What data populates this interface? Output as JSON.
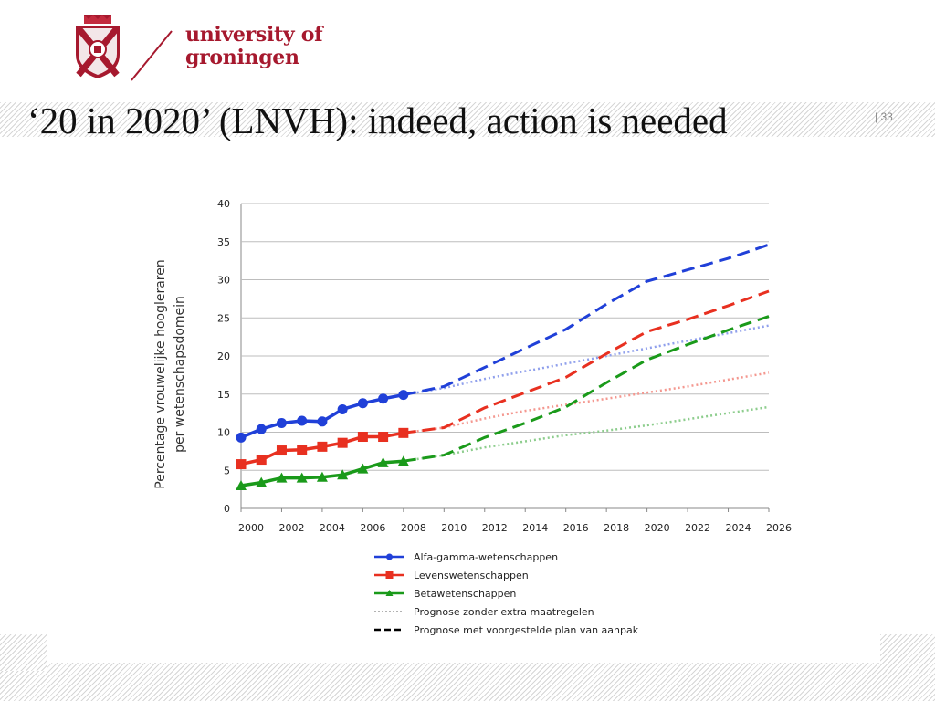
{
  "header": {
    "wordmark_line1": "university of",
    "wordmark_line2": "groningen",
    "slide_title": "‘20 in 2020’ (LNVH): indeed, action is needed",
    "slide_number": "| 33",
    "brand_color": "#a6192e"
  },
  "chart_data": {
    "type": "line",
    "ylabel_line1": "Percentage vrouwelijke hoogleraren",
    "ylabel_line2": "per wetenschapsdomein",
    "x_ticks": [
      "2000",
      "2002",
      "2004",
      "2006",
      "2008",
      "2010",
      "2012",
      "2014",
      "2016",
      "2018",
      "2020",
      "2022",
      "2024",
      "2026"
    ],
    "y_ticks": [
      "0",
      "5",
      "10",
      "15",
      "20",
      "25",
      "30",
      "35",
      "40"
    ],
    "xlim": [
      2000,
      2026
    ],
    "ylim": [
      0,
      40
    ],
    "grid": true,
    "series": [
      {
        "name": "Alfa-gamma-wetenschappen",
        "color": "#2040d8",
        "marker": "circle",
        "x": [
          2000,
          2001,
          2002,
          2003,
          2004,
          2005,
          2006,
          2007,
          2008
        ],
        "values": [
          9.3,
          10.4,
          11.2,
          11.5,
          11.4,
          13.0,
          13.8,
          14.4,
          14.9
        ],
        "forecast_extra": {
          "x": [
            2008,
            2010,
            2012,
            2014,
            2016,
            2018,
            2020,
            2022,
            2024,
            2026
          ],
          "values": [
            14.9,
            16.0,
            18.5,
            21.0,
            23.5,
            26.8,
            29.8,
            31.3,
            32.8,
            34.6
          ]
        },
        "forecast_plain": {
          "x": [
            2008,
            2010,
            2012,
            2014,
            2016,
            2018,
            2020,
            2022,
            2024,
            2026
          ],
          "values": [
            14.9,
            15.8,
            17.0,
            18.0,
            19.0,
            20.0,
            21.0,
            22.0,
            23.0,
            24.0
          ]
        }
      },
      {
        "name": "Levenswetenschappen",
        "color": "#e83020",
        "marker": "square",
        "x": [
          2000,
          2001,
          2002,
          2003,
          2004,
          2005,
          2006,
          2007,
          2008
        ],
        "values": [
          5.8,
          6.4,
          7.6,
          7.7,
          8.1,
          8.6,
          9.4,
          9.4,
          9.9
        ],
        "forecast_extra": {
          "x": [
            2008,
            2010,
            2012,
            2014,
            2016,
            2018,
            2020,
            2022,
            2024,
            2026
          ],
          "values": [
            9.9,
            10.6,
            13.2,
            15.2,
            17.2,
            20.3,
            23.2,
            24.8,
            26.6,
            28.5
          ]
        },
        "forecast_plain": {
          "x": [
            2008,
            2010,
            2012,
            2014,
            2016,
            2018,
            2020,
            2022,
            2024,
            2026
          ],
          "values": [
            9.9,
            10.6,
            11.8,
            12.8,
            13.6,
            14.4,
            15.2,
            16.0,
            16.9,
            17.8
          ]
        }
      },
      {
        "name": "Betawetenschappen",
        "color": "#1a9a1a",
        "marker": "triangle",
        "x": [
          2000,
          2001,
          2002,
          2003,
          2004,
          2005,
          2006,
          2007,
          2008
        ],
        "values": [
          3.0,
          3.4,
          4.0,
          4.0,
          4.1,
          4.4,
          5.2,
          6.0,
          6.2
        ],
        "forecast_extra": {
          "x": [
            2008,
            2010,
            2012,
            2014,
            2016,
            2018,
            2020,
            2022,
            2024,
            2026
          ],
          "values": [
            6.2,
            7.0,
            9.3,
            11.2,
            13.3,
            16.5,
            19.5,
            21.5,
            23.4,
            25.2
          ]
        },
        "forecast_plain": {
          "x": [
            2008,
            2010,
            2012,
            2014,
            2016,
            2018,
            2020,
            2022,
            2024,
            2026
          ],
          "values": [
            6.2,
            7.0,
            8.0,
            8.8,
            9.6,
            10.2,
            10.9,
            11.7,
            12.5,
            13.3
          ]
        }
      }
    ],
    "legend": {
      "position": "bottom-center",
      "entries": [
        {
          "label": "Alfa-gamma-wetenschappen",
          "style": "solid-marker",
          "color": "#2040d8"
        },
        {
          "label": "Levenswetenschappen",
          "style": "solid-marker",
          "color": "#e83020"
        },
        {
          "label": "Betawetenschappen",
          "style": "solid-marker",
          "color": "#1a9a1a"
        },
        {
          "label": "Prognose zonder extra maatregelen",
          "style": "dotted",
          "color": "#999999"
        },
        {
          "label": "Prognose met voorgestelde plan van aanpak",
          "style": "dashed",
          "color": "#000000"
        }
      ]
    }
  }
}
